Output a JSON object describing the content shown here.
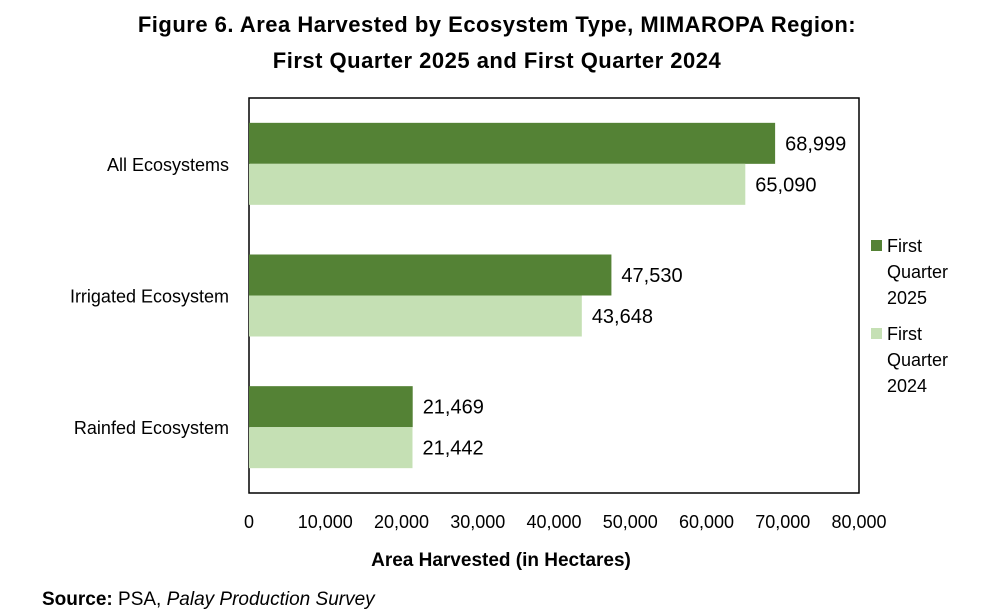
{
  "title_line1": "Figure 6. Area Harvested by Ecosystem Type, MIMAROPA Region:",
  "title_line2": "First Quarter 2025 and First Quarter 2024",
  "source": {
    "label": "Source:",
    "agency": " PSA, ",
    "survey": "Palay Production Survey"
  },
  "chart_data": {
    "type": "bar",
    "orientation": "horizontal",
    "categories": [
      "All Ecosystems",
      "Irrigated Ecosystem",
      "Rainfed Ecosystem"
    ],
    "series": [
      {
        "name": "First Quarter 2025",
        "color": "#548235",
        "values": [
          68999,
          47530,
          21469
        ],
        "labels": [
          "68,999",
          "47,530",
          "21,469"
        ]
      },
      {
        "name": "First Quarter 2024",
        "color": "#c5e0b4",
        "values": [
          65090,
          43648,
          21442
        ],
        "labels": [
          "65,090",
          "43,648",
          "21,442"
        ]
      }
    ],
    "xlabel": "Area Harvested (in Hectares)",
    "ylabel": "",
    "xlim": [
      0,
      80000
    ],
    "xticks": [
      0,
      10000,
      20000,
      30000,
      40000,
      50000,
      60000,
      70000,
      80000
    ],
    "xtick_labels": [
      "0",
      "10,000",
      "20,000",
      "30,000",
      "40,000",
      "50,000",
      "60,000",
      "70,000",
      "80,000"
    ],
    "legend_position": "right",
    "legend_lines": [
      [
        "First",
        "Quarter",
        "2025"
      ],
      [
        "First",
        "Quarter",
        "2024"
      ]
    ],
    "grid": false
  }
}
